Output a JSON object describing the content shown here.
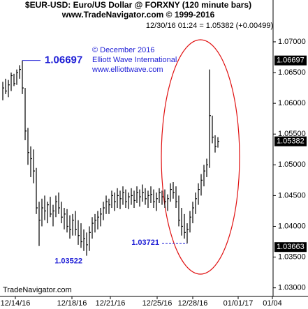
{
  "chart_data": {
    "type": "hlc",
    "title": "$EUR-USD:  Euro/US Dollar @ FORXNY  (120 minute bars)",
    "subtitle": "www.TradeNavigator.com © 1999-2016",
    "last_quote": "12/30/16 01:24 = 1.05382 (+0.00499)",
    "credits": [
      "© December 2016",
      "Elliott Wave International",
      "www.elliottwave.com"
    ],
    "source": "TradeNavigator.com",
    "color": "#000000",
    "xlim": [
      -1,
      96.5
    ],
    "xticks": [
      {
        "value": 4.5,
        "label": "12/14/16"
      },
      {
        "value": 24.75,
        "label": "12/18/16"
      },
      {
        "value": 38.5,
        "label": "12/21/16"
      },
      {
        "value": 55.25,
        "label": "12/25/16"
      },
      {
        "value": 68,
        "label": "12/28/16"
      },
      {
        "value": 84.25,
        "label": "01/01/17"
      },
      {
        "value": 96.5,
        "label": "01/04"
      }
    ],
    "ylim": [
      1.0286,
      1.0768
    ],
    "yticks": [
      {
        "value": 1.07,
        "label": "1.07000"
      },
      {
        "value": 1.065,
        "label": "1.06500"
      },
      {
        "value": 1.06,
        "label": "1.06000"
      },
      {
        "value": 1.055,
        "label": "1.05500"
      },
      {
        "value": 1.05,
        "label": "1.05000"
      },
      {
        "value": 1.045,
        "label": "1.04500"
      },
      {
        "value": 1.04,
        "label": "1.04000"
      },
      {
        "value": 1.035,
        "label": "1.03500"
      },
      {
        "value": 1.03,
        "label": "1.03000"
      }
    ],
    "high": [
      1.0635,
      1.064,
      1.0638,
      1.065,
      1.0648,
      1.0655,
      1.0662,
      1.06697,
      1.0625,
      1.056,
      1.053,
      1.0525,
      1.0495,
      1.044,
      1.0445,
      1.045,
      1.044,
      1.0448,
      1.0435,
      1.045,
      1.0455,
      1.044,
      1.043,
      1.0428,
      1.0418,
      1.042,
      1.0425,
      1.041,
      1.0405,
      1.0395,
      1.039,
      1.04,
      1.0415,
      1.042,
      1.0425,
      1.043,
      1.044,
      1.045,
      1.0445,
      1.0458,
      1.0455,
      1.0462,
      1.0458,
      1.0465,
      1.046,
      1.0455,
      1.0462,
      1.0458,
      1.0465,
      1.046,
      1.0468,
      1.0462,
      1.0458,
      1.0465,
      1.046,
      1.0455,
      1.0462,
      1.0458,
      1.046,
      1.0452,
      1.047,
      1.0472,
      1.0465,
      1.045,
      1.043,
      1.042,
      1.0405,
      1.0425,
      1.044,
      1.0455,
      1.047,
      1.0485,
      1.05,
      1.051,
      1.0655,
      1.058,
      1.0548,
      1.0545
    ],
    "low": [
      1.0605,
      1.0615,
      1.061,
      1.062,
      1.0628,
      1.063,
      1.064,
      1.0615,
      1.054,
      1.05,
      1.048,
      1.047,
      1.042,
      1.0368,
      1.04,
      1.041,
      1.0405,
      1.0415,
      1.04,
      1.0415,
      1.042,
      1.0405,
      1.0395,
      1.039,
      1.038,
      1.0385,
      1.0385,
      1.037,
      1.0365,
      1.036,
      1.03522,
      1.036,
      1.038,
      1.039,
      1.0395,
      1.04,
      1.041,
      1.042,
      1.042,
      1.043,
      1.0425,
      1.043,
      1.0428,
      1.0435,
      1.043,
      1.0428,
      1.0435,
      1.043,
      1.0438,
      1.0432,
      1.044,
      1.0435,
      1.043,
      1.0438,
      1.043,
      1.0425,
      1.0438,
      1.0435,
      1.043,
      1.0425,
      1.044,
      1.0445,
      1.043,
      1.04,
      1.0385,
      1.038,
      1.03721,
      1.039,
      1.0405,
      1.042,
      1.0435,
      1.045,
      1.0465,
      1.048,
      1.0495,
      1.0535,
      1.052,
      1.0528
    ],
    "close": [
      1.0625,
      1.062,
      1.063,
      1.0645,
      1.0632,
      1.065,
      1.0655,
      1.0625,
      1.0555,
      1.052,
      1.051,
      1.049,
      1.043,
      1.041,
      1.043,
      1.0425,
      1.0435,
      1.042,
      1.0425,
      1.044,
      1.043,
      1.0415,
      1.042,
      1.04,
      1.0395,
      1.041,
      1.0395,
      1.0385,
      1.0375,
      1.038,
      1.037,
      1.039,
      1.0405,
      1.041,
      1.0415,
      1.042,
      1.043,
      1.044,
      1.0435,
      1.045,
      1.044,
      1.045,
      1.0445,
      1.0455,
      1.044,
      1.0448,
      1.045,
      1.0442,
      1.0455,
      1.0448,
      1.0455,
      1.0445,
      1.045,
      1.0452,
      1.044,
      1.0445,
      1.0455,
      1.0448,
      1.044,
      1.0445,
      1.046,
      1.0455,
      1.044,
      1.041,
      1.04,
      1.039,
      1.0395,
      1.0415,
      1.043,
      1.0445,
      1.046,
      1.0475,
      1.049,
      1.05,
      1.058,
      1.0545,
      1.053,
      1.05382
    ],
    "annotations": [
      {
        "value": 1.06697,
        "index": 7
      },
      {
        "value": 1.03522,
        "index": 30
      },
      {
        "value": 1.03721,
        "index": 66
      }
    ],
    "axis_markers": [
      1.06697,
      1.05382,
      1.03663
    ]
  }
}
